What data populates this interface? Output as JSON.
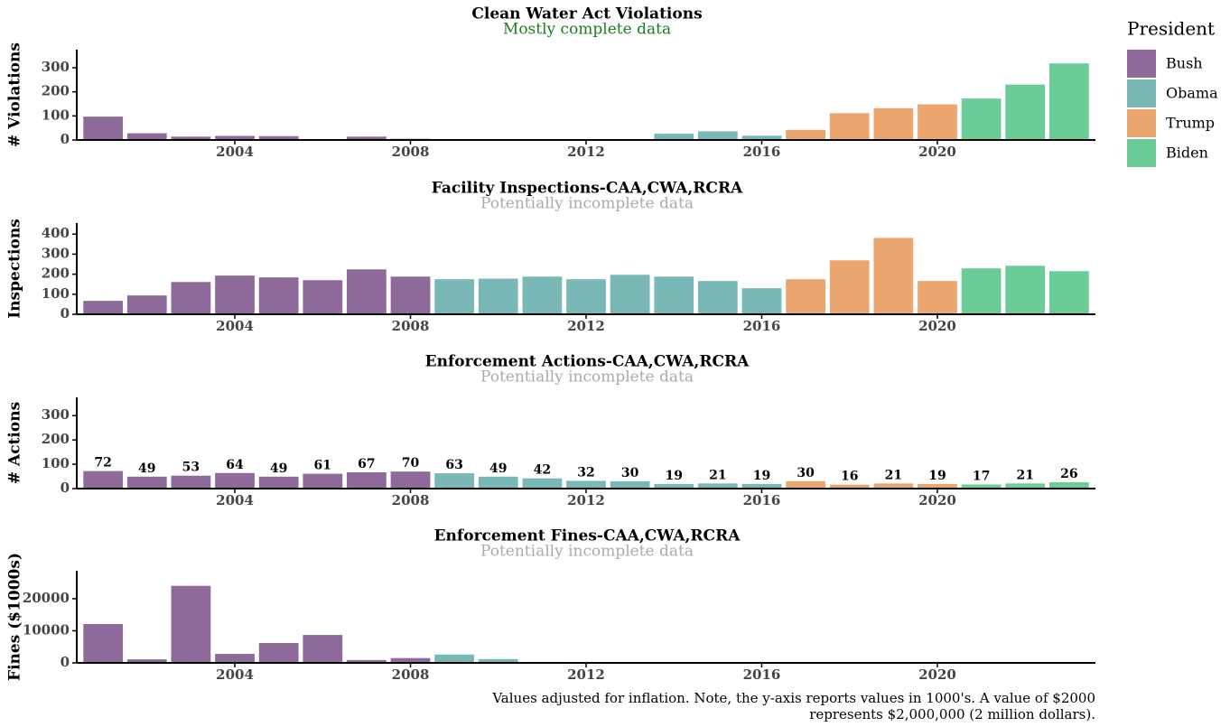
{
  "chart_data": [
    {
      "type": "bar",
      "title": "Clean Water Act Violations",
      "subtitle": "Mostly complete data",
      "subtitle_color": "#1f7a1f",
      "ylabel": "# Violations",
      "legend_title": "President",
      "x": [
        2001,
        2002,
        2003,
        2004,
        2005,
        2006,
        2007,
        2008,
        2009,
        2010,
        2011,
        2012,
        2013,
        2014,
        2015,
        2016,
        2017,
        2018,
        2019,
        2020,
        2021,
        2022,
        2023
      ],
      "xlim": [
        2000.4,
        2023.6
      ],
      "xticks": [
        2004,
        2008,
        2012,
        2016,
        2020
      ],
      "ylim": [
        0,
        375
      ],
      "yticks": [
        0,
        100,
        200,
        300
      ],
      "series": [
        {
          "name": "Bush",
          "color": "#8e6a9a",
          "values": [
            97,
            28,
            14,
            17,
            16,
            0,
            14,
            5,
            null,
            null,
            null,
            null,
            null,
            null,
            null,
            null,
            null,
            null,
            null,
            null,
            null,
            null,
            null
          ]
        },
        {
          "name": "Obama",
          "color": "#7ab8b8",
          "values": [
            null,
            null,
            null,
            null,
            null,
            null,
            null,
            null,
            0,
            0,
            0,
            0,
            3,
            26,
            36,
            18,
            null,
            null,
            null,
            null,
            null,
            null,
            null
          ]
        },
        {
          "name": "Trump",
          "color": "#eba670",
          "values": [
            null,
            null,
            null,
            null,
            null,
            null,
            null,
            null,
            null,
            null,
            null,
            null,
            null,
            null,
            null,
            null,
            42,
            111,
            132,
            148,
            null,
            null,
            null
          ]
        },
        {
          "name": "Biden",
          "color": "#6ccc98",
          "values": [
            null,
            null,
            null,
            null,
            null,
            null,
            null,
            null,
            null,
            null,
            null,
            null,
            null,
            null,
            null,
            null,
            null,
            null,
            null,
            null,
            172,
            230,
            318
          ]
        }
      ]
    },
    {
      "type": "bar",
      "title": "Facility Inspections-CAA,CWA,RCRA",
      "subtitle": "Potentially incomplete data",
      "subtitle_color": "#aaaaaa",
      "ylabel": "Inspections",
      "x": [
        2001,
        2002,
        2003,
        2004,
        2005,
        2006,
        2007,
        2008,
        2009,
        2010,
        2011,
        2012,
        2013,
        2014,
        2015,
        2016,
        2017,
        2018,
        2019,
        2020,
        2021,
        2022,
        2023
      ],
      "xlim": [
        2000.4,
        2023.6
      ],
      "xticks": [
        2004,
        2008,
        2012,
        2016,
        2020
      ],
      "ylim": [
        0,
        455
      ],
      "yticks": [
        0,
        100,
        200,
        300,
        400
      ],
      "series": [
        {
          "name": "Bush",
          "color": "#8e6a9a",
          "values": [
            67,
            94,
            161,
            193,
            184,
            170,
            224,
            188,
            null,
            null,
            null,
            null,
            null,
            null,
            null,
            null,
            null,
            null,
            null,
            null,
            null,
            null,
            null
          ]
        },
        {
          "name": "Obama",
          "color": "#7ab8b8",
          "values": [
            null,
            null,
            null,
            null,
            null,
            null,
            null,
            null,
            175,
            178,
            188,
            175,
            197,
            188,
            166,
            130,
            null,
            null,
            null,
            null,
            null,
            null,
            null
          ]
        },
        {
          "name": "Trump",
          "color": "#eba670",
          "values": [
            null,
            null,
            null,
            null,
            null,
            null,
            null,
            null,
            null,
            null,
            null,
            null,
            null,
            null,
            null,
            null,
            175,
            269,
            381,
            166,
            null,
            null,
            null
          ]
        },
        {
          "name": "Biden",
          "color": "#6ccc98",
          "values": [
            null,
            null,
            null,
            null,
            null,
            null,
            null,
            null,
            null,
            null,
            null,
            null,
            null,
            null,
            null,
            null,
            null,
            null,
            null,
            null,
            229,
            242,
            215
          ]
        }
      ]
    },
    {
      "type": "bar",
      "title": "Enforcement Actions-CAA,CWA,RCRA",
      "subtitle": "Potentially incomplete data",
      "subtitle_color": "#aaaaaa",
      "ylabel": "# Actions",
      "show_values": true,
      "x": [
        2001,
        2002,
        2003,
        2004,
        2005,
        2006,
        2007,
        2008,
        2009,
        2010,
        2011,
        2012,
        2013,
        2014,
        2015,
        2016,
        2017,
        2018,
        2019,
        2020,
        2021,
        2022,
        2023
      ],
      "xlim": [
        2000.4,
        2023.6
      ],
      "xticks": [
        2004,
        2008,
        2012,
        2016,
        2020
      ],
      "ylim": [
        0,
        375
      ],
      "yticks": [
        0,
        100,
        200,
        300
      ],
      "series": [
        {
          "name": "Bush",
          "color": "#8e6a9a",
          "values": [
            72,
            49,
            53,
            64,
            49,
            61,
            67,
            70,
            null,
            null,
            null,
            null,
            null,
            null,
            null,
            null,
            null,
            null,
            null,
            null,
            null,
            null,
            null
          ]
        },
        {
          "name": "Obama",
          "color": "#7ab8b8",
          "values": [
            null,
            null,
            null,
            null,
            null,
            null,
            null,
            null,
            63,
            49,
            42,
            32,
            30,
            19,
            21,
            19,
            null,
            null,
            null,
            null,
            null,
            null,
            null
          ]
        },
        {
          "name": "Trump",
          "color": "#eba670",
          "values": [
            null,
            null,
            null,
            null,
            null,
            null,
            null,
            null,
            null,
            null,
            null,
            null,
            null,
            null,
            null,
            null,
            30,
            16,
            21,
            19,
            null,
            null,
            null
          ]
        },
        {
          "name": "Biden",
          "color": "#6ccc98",
          "values": [
            null,
            null,
            null,
            null,
            null,
            null,
            null,
            null,
            null,
            null,
            null,
            null,
            null,
            null,
            null,
            null,
            null,
            null,
            null,
            null,
            17,
            21,
            26
          ]
        }
      ]
    },
    {
      "type": "bar",
      "title": "Enforcement Fines-CAA,CWA,RCRA",
      "subtitle": "Potentially incomplete data",
      "subtitle_color": "#aaaaaa",
      "ylabel": "Fines ($1000s)",
      "x": [
        2001,
        2002,
        2003,
        2004,
        2005,
        2006,
        2007,
        2008,
        2009,
        2010,
        2011,
        2012,
        2013,
        2014,
        2015,
        2016,
        2017,
        2018,
        2019,
        2020,
        2021,
        2022,
        2023
      ],
      "xlim": [
        2000.4,
        2023.6
      ],
      "xticks": [
        2004,
        2008,
        2012,
        2016,
        2020
      ],
      "ylim": [
        0,
        28700
      ],
      "yticks": [
        0,
        10000,
        20000
      ],
      "series": [
        {
          "name": "Bush",
          "color": "#8e6a9a",
          "values": [
            12100,
            1100,
            24000,
            2800,
            6200,
            8700,
            900,
            1500,
            null,
            null,
            null,
            null,
            null,
            null,
            null,
            null,
            null,
            null,
            null,
            null,
            null,
            null,
            null
          ]
        },
        {
          "name": "Obama",
          "color": "#7ab8b8",
          "values": [
            null,
            null,
            null,
            null,
            null,
            null,
            null,
            null,
            2600,
            1200,
            300,
            200,
            0,
            0,
            0,
            0,
            null,
            null,
            null,
            null,
            null,
            null,
            null
          ]
        },
        {
          "name": "Trump",
          "color": "#eba670",
          "values": [
            null,
            null,
            null,
            null,
            null,
            null,
            null,
            null,
            null,
            null,
            null,
            null,
            null,
            null,
            null,
            null,
            0,
            0,
            0,
            0,
            null,
            null,
            null
          ]
        },
        {
          "name": "Biden",
          "color": "#6ccc98",
          "values": [
            null,
            null,
            null,
            null,
            null,
            null,
            null,
            null,
            null,
            null,
            null,
            null,
            null,
            null,
            null,
            null,
            null,
            null,
            null,
            null,
            0,
            0,
            0
          ]
        }
      ]
    }
  ],
  "note": [
    "Values adjusted for inflation. Note, the y-axis reports values in 1000's. A value of $2000",
    "represents $2,000,000 (2 million dollars)."
  ]
}
